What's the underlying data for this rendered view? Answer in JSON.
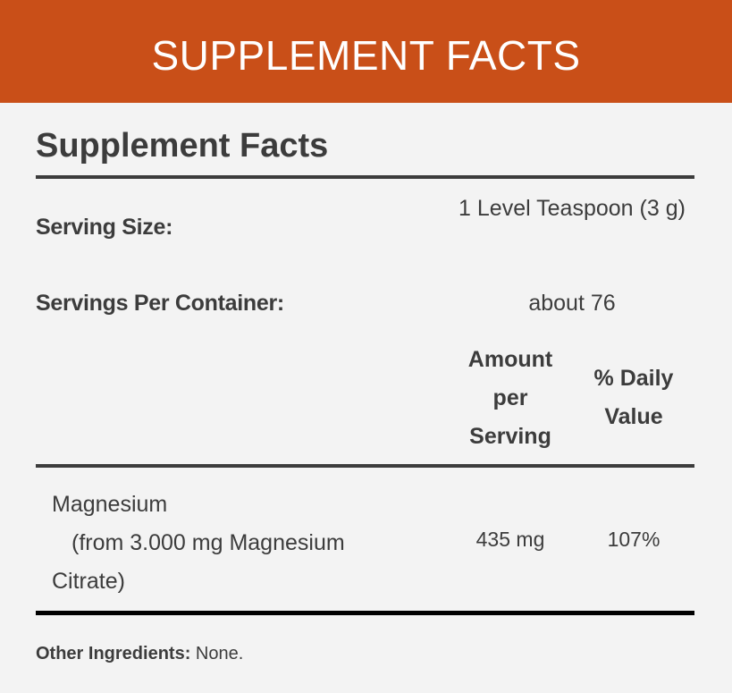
{
  "banner": {
    "title": "SUPPLEMENT FACTS",
    "color": "#c94f18"
  },
  "panel": {
    "title": "Supplement Facts",
    "serving_size": {
      "label": "Serving Size:",
      "value": "1 Level Teaspoon (3 g)"
    },
    "servings_per_container": {
      "label": "Servings Per Container:",
      "value": "about 76"
    },
    "columns": {
      "amount": "Amount per Serving",
      "daily_value": "% Daily Value"
    },
    "nutrients": [
      {
        "name": "Magnesium",
        "source": "(from 3.000 mg Magnesium",
        "source_cont": "Citrate)",
        "amount": "435 mg",
        "daily_value": "107%"
      }
    ],
    "other_ingredients": {
      "label": "Other Ingredients:",
      "value": "None."
    }
  }
}
